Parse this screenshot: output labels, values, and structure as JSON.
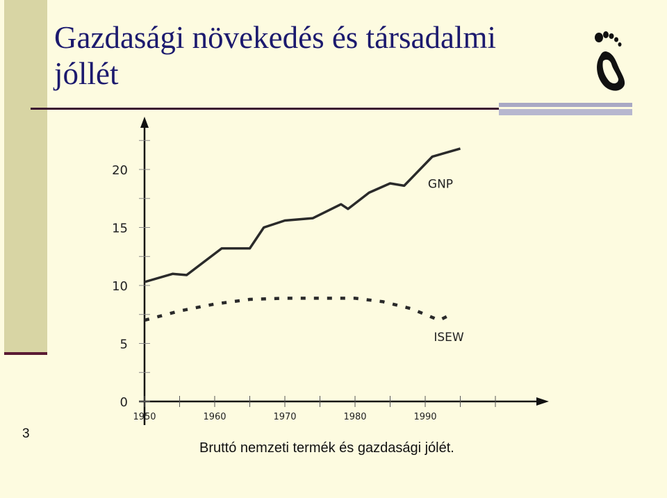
{
  "slide": {
    "title": "Gazdasági növekedés és társadalmi jóllét",
    "slide_number": "3",
    "caption": "Bruttó nemzeti termék és gazdasági jólét.",
    "logo_icon": "footprint-icon"
  },
  "colors": {
    "background": "#fdfbe0",
    "title": "#1c1a6e",
    "side_bar": "#d8d5a4",
    "rule": "#3a1030",
    "series": "#2a2a2a"
  },
  "chart_data": {
    "type": "line",
    "title": "",
    "xlabel": "",
    "ylabel": "",
    "xlim": [
      1950,
      2000
    ],
    "ylim": [
      0,
      22
    ],
    "x_ticks": [
      1950,
      1960,
      1970,
      1980,
      1990
    ],
    "y_ticks": [
      0,
      5,
      10,
      15,
      20
    ],
    "grid": false,
    "legend": "inline labels at line ends",
    "series": [
      {
        "name": "GNP",
        "style": "solid",
        "x": [
          1950,
          1954,
          1956,
          1961,
          1965,
          1967,
          1970,
          1974,
          1978,
          1979,
          1982,
          1985,
          1987,
          1991,
          1995
        ],
        "y": [
          10.3,
          11.0,
          10.9,
          13.2,
          13.2,
          15.0,
          15.6,
          15.8,
          17.0,
          16.6,
          18.0,
          18.8,
          18.6,
          21.1,
          21.8
        ]
      },
      {
        "name": "ISEW",
        "style": "dashed",
        "x": [
          1950,
          1955,
          1960,
          1965,
          1970,
          1975,
          1980,
          1984,
          1988,
          1992,
          1994
        ],
        "y": [
          7.0,
          7.8,
          8.4,
          8.8,
          8.9,
          8.9,
          8.9,
          8.6,
          8.0,
          7.0,
          7.6
        ]
      }
    ],
    "tick_labels": {
      "x": [
        "1950",
        "1960",
        "1970",
        "1980",
        "1990"
      ],
      "y": [
        "0",
        "5",
        "10",
        "15",
        "20"
      ]
    }
  }
}
